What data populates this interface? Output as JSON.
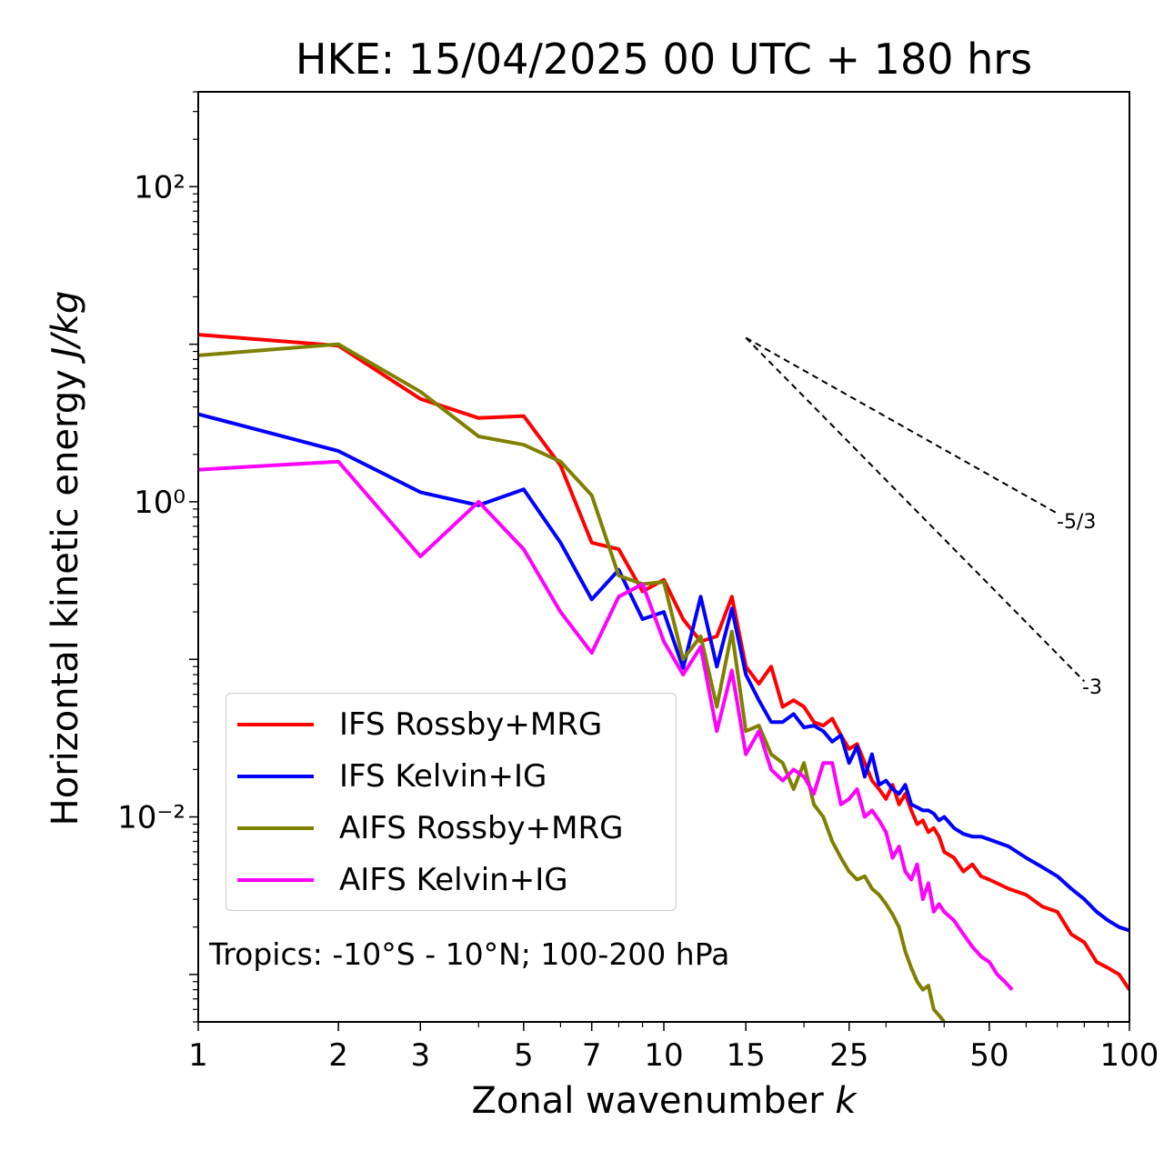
{
  "chart_data": {
    "type": "line",
    "title": "HKE: 15/04/2025 00 UTC + 180 hrs",
    "xlabel": "Zonal wavenumber k",
    "ylabel": "Horizontal kinetic energy J/kg",
    "xscale": "log",
    "yscale": "log",
    "xlim": [
      1,
      100
    ],
    "ylim": [
      0.0005,
      400
    ],
    "x_tick_labels": [
      "1",
      "2",
      "3",
      "5",
      "7",
      "10",
      "15",
      "25",
      "50",
      "100"
    ],
    "x_ticks": [
      1,
      2,
      3,
      5,
      7,
      10,
      15,
      25,
      50,
      100
    ],
    "y_ticks": [
      0.01,
      1,
      100
    ],
    "y_tick_labels": [
      "10⁻²",
      "10⁰",
      "10²"
    ],
    "grid": false,
    "legend_position": "lower-left",
    "annotation": "Tropics: -10°S - 10°N; 100-200 hPa",
    "reference_slopes": [
      {
        "label": "-5/3",
        "slope": -1.6667,
        "x_start": 15,
        "x_end": 70,
        "y_start": 11
      },
      {
        "label": "-3",
        "slope": -3,
        "x_start": 15,
        "x_end": 80,
        "y_start": 11
      }
    ],
    "series": [
      {
        "name": "IFS Rossby+MRG",
        "color": "#ff0000",
        "x": [
          1,
          2,
          3,
          4,
          5,
          6,
          7,
          8,
          9,
          10,
          11,
          12,
          13,
          14,
          15,
          16,
          17,
          18,
          19,
          20,
          21,
          22,
          23,
          24,
          25,
          26,
          27,
          28,
          29,
          30,
          31,
          32,
          33,
          34,
          35,
          36,
          37,
          38,
          39,
          40,
          42,
          44,
          46,
          48,
          50,
          55,
          60,
          65,
          70,
          75,
          80,
          85,
          90,
          95,
          100
        ],
        "values": [
          11.5,
          9.8,
          4.5,
          3.4,
          3.5,
          1.7,
          0.55,
          0.5,
          0.27,
          0.32,
          0.18,
          0.13,
          0.14,
          0.25,
          0.09,
          0.07,
          0.09,
          0.05,
          0.055,
          0.05,
          0.04,
          0.038,
          0.042,
          0.033,
          0.027,
          0.029,
          0.022,
          0.017,
          0.015,
          0.013,
          0.016,
          0.012,
          0.014,
          0.011,
          0.009,
          0.0095,
          0.008,
          0.0085,
          0.0075,
          0.006,
          0.0055,
          0.0045,
          0.005,
          0.0042,
          0.004,
          0.0035,
          0.0032,
          0.0027,
          0.0025,
          0.0018,
          0.0016,
          0.0012,
          0.0011,
          0.001,
          0.0008
        ]
      },
      {
        "name": "IFS Kelvin+IG",
        "color": "#0000ff",
        "x": [
          1,
          2,
          3,
          4,
          5,
          6,
          7,
          8,
          9,
          10,
          11,
          12,
          13,
          14,
          15,
          16,
          17,
          18,
          19,
          20,
          21,
          22,
          23,
          24,
          25,
          26,
          27,
          28,
          29,
          30,
          31,
          32,
          33,
          34,
          35,
          36,
          37,
          38,
          39,
          40,
          42,
          44,
          46,
          48,
          50,
          55,
          60,
          65,
          70,
          75,
          80,
          85,
          90,
          95,
          100
        ],
        "values": [
          3.6,
          2.1,
          1.15,
          0.95,
          1.2,
          0.55,
          0.24,
          0.37,
          0.18,
          0.2,
          0.088,
          0.25,
          0.09,
          0.21,
          0.08,
          0.055,
          0.04,
          0.04,
          0.045,
          0.037,
          0.038,
          0.035,
          0.03,
          0.033,
          0.022,
          0.028,
          0.018,
          0.025,
          0.016,
          0.017,
          0.015,
          0.014,
          0.016,
          0.012,
          0.0115,
          0.011,
          0.011,
          0.0105,
          0.0095,
          0.01,
          0.0085,
          0.0078,
          0.0075,
          0.0075,
          0.0072,
          0.0065,
          0.0055,
          0.0048,
          0.0042,
          0.0035,
          0.003,
          0.0025,
          0.0022,
          0.002,
          0.0019
        ]
      },
      {
        "name": "AIFS Rossby+MRG",
        "color": "#808000",
        "x": [
          1,
          2,
          3,
          4,
          5,
          6,
          7,
          8,
          9,
          10,
          11,
          12,
          13,
          14,
          15,
          16,
          17,
          18,
          19,
          20,
          21,
          22,
          23,
          24,
          25,
          26,
          27,
          28,
          29,
          30,
          31,
          32,
          33,
          34,
          35,
          36,
          37,
          38,
          39,
          40,
          41,
          42,
          43
        ],
        "values": [
          8.5,
          10,
          5,
          2.6,
          2.3,
          1.8,
          1.1,
          0.34,
          0.3,
          0.31,
          0.1,
          0.14,
          0.05,
          0.15,
          0.035,
          0.038,
          0.025,
          0.022,
          0.015,
          0.022,
          0.012,
          0.01,
          0.007,
          0.0055,
          0.0045,
          0.004,
          0.0042,
          0.0035,
          0.0032,
          0.0028,
          0.0024,
          0.002,
          0.0014,
          0.0011,
          0.0009,
          0.0008,
          0.00085,
          0.0006,
          0.00055,
          0.0005,
          0.00045,
          0.0004,
          0.0004
        ]
      },
      {
        "name": "AIFS Kelvin+IG",
        "color": "#ff00ff",
        "x": [
          1,
          2,
          3,
          4,
          5,
          6,
          7,
          8,
          9,
          10,
          11,
          12,
          13,
          14,
          15,
          16,
          17,
          18,
          19,
          20,
          21,
          22,
          23,
          24,
          25,
          26,
          27,
          28,
          29,
          30,
          31,
          32,
          33,
          34,
          35,
          36,
          37,
          38,
          39,
          40,
          42,
          44,
          46,
          48,
          50,
          52,
          54,
          56
        ],
        "values": [
          1.6,
          1.8,
          0.45,
          1.0,
          0.5,
          0.2,
          0.11,
          0.25,
          0.3,
          0.13,
          0.08,
          0.12,
          0.035,
          0.085,
          0.025,
          0.035,
          0.02,
          0.017,
          0.02,
          0.018,
          0.014,
          0.022,
          0.022,
          0.012,
          0.013,
          0.015,
          0.01,
          0.011,
          0.0095,
          0.008,
          0.0055,
          0.0065,
          0.0045,
          0.004,
          0.005,
          0.003,
          0.0038,
          0.0025,
          0.0028,
          0.0025,
          0.0022,
          0.0018,
          0.0015,
          0.0013,
          0.0012,
          0.001,
          0.0009,
          0.0008
        ]
      }
    ]
  }
}
